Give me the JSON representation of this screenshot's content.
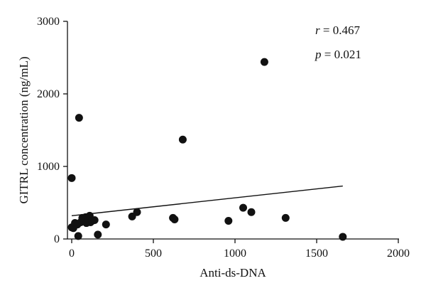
{
  "chart_data": {
    "type": "scatter",
    "xlabel": "Anti-ds-DNA",
    "ylabel": "GITRL concentration (ng/mL)",
    "xlim": [
      0,
      2000
    ],
    "ylim": [
      0,
      3000
    ],
    "xticks": [
      0,
      500,
      1000,
      1500,
      2000
    ],
    "yticks": [
      0,
      1000,
      2000,
      3000
    ],
    "grid": false,
    "points": [
      {
        "x": 0,
        "y": 840
      },
      {
        "x": 0,
        "y": 160
      },
      {
        "x": 10,
        "y": 150
      },
      {
        "x": 20,
        "y": 220
      },
      {
        "x": 35,
        "y": 200
      },
      {
        "x": 40,
        "y": 40
      },
      {
        "x": 45,
        "y": 1670
      },
      {
        "x": 55,
        "y": 230
      },
      {
        "x": 65,
        "y": 290
      },
      {
        "x": 75,
        "y": 270
      },
      {
        "x": 85,
        "y": 300
      },
      {
        "x": 90,
        "y": 220
      },
      {
        "x": 100,
        "y": 270
      },
      {
        "x": 110,
        "y": 320
      },
      {
        "x": 115,
        "y": 230
      },
      {
        "x": 125,
        "y": 250
      },
      {
        "x": 140,
        "y": 260
      },
      {
        "x": 160,
        "y": 60
      },
      {
        "x": 210,
        "y": 200
      },
      {
        "x": 370,
        "y": 310
      },
      {
        "x": 400,
        "y": 370
      },
      {
        "x": 620,
        "y": 290
      },
      {
        "x": 630,
        "y": 270
      },
      {
        "x": 680,
        "y": 1370
      },
      {
        "x": 960,
        "y": 250
      },
      {
        "x": 1050,
        "y": 430
      },
      {
        "x": 1100,
        "y": 370
      },
      {
        "x": 1180,
        "y": 2440
      },
      {
        "x": 1310,
        "y": 290
      },
      {
        "x": 1660,
        "y": 30
      }
    ],
    "trendline": {
      "x": [
        0,
        1660
      ],
      "y": [
        320,
        730
      ]
    },
    "annotations": [
      {
        "symbol": "r",
        "text": " = 0.467"
      },
      {
        "symbol": "p",
        "text": " = 0.021"
      }
    ],
    "marker_color": "#111111",
    "line_color": "#111111"
  }
}
